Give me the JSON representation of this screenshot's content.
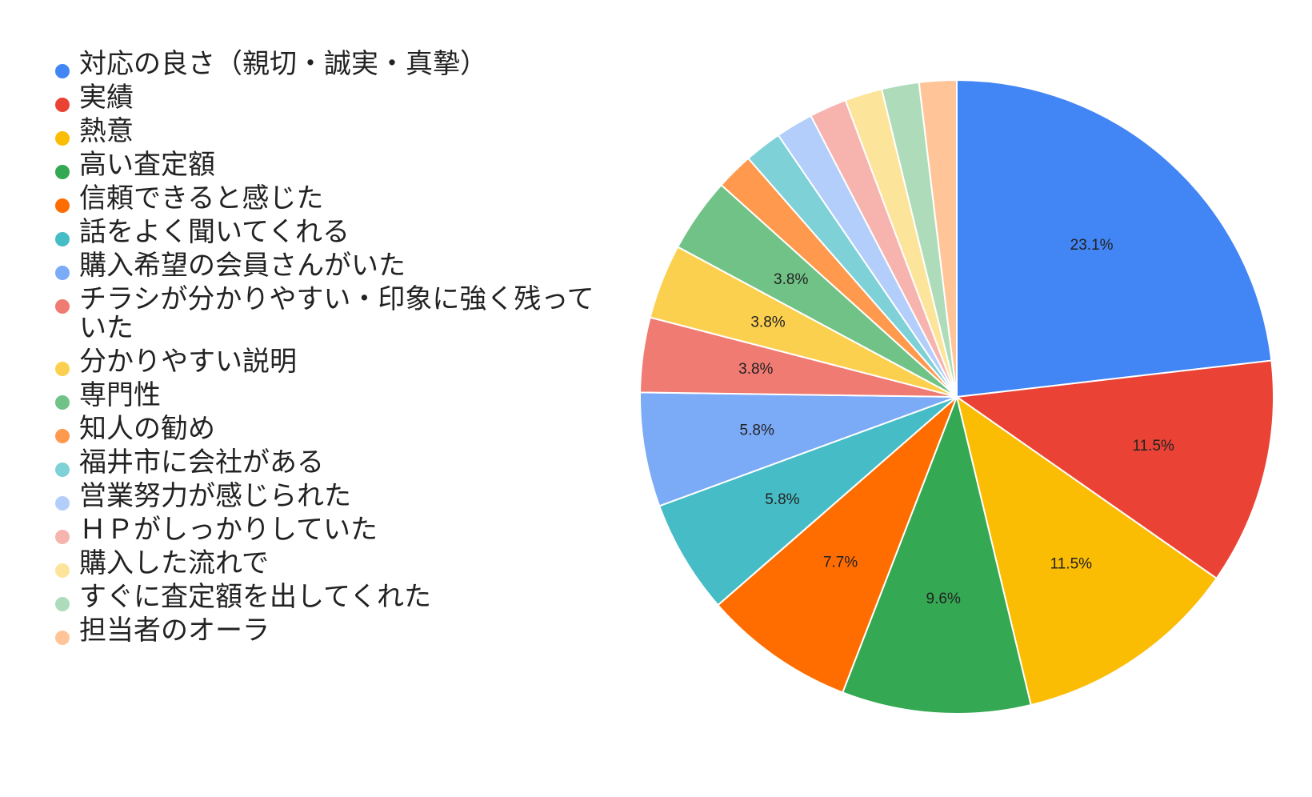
{
  "chart_data": {
    "type": "pie",
    "start_angle_deg": 0,
    "direction": "clockwise",
    "legend_position": "left",
    "slices": [
      {
        "label": "対応の良さ（親切・誠実・真摯）",
        "value": 23.1,
        "data_label": "23.1%",
        "color": "#4285f4"
      },
      {
        "label": "実績",
        "value": 11.5,
        "data_label": "11.5%",
        "color": "#ea4335"
      },
      {
        "label": "熱意",
        "value": 11.5,
        "data_label": "11.5%",
        "color": "#fbbc04"
      },
      {
        "label": "高い査定額",
        "value": 9.6,
        "data_label": "9.6%",
        "color": "#34a853"
      },
      {
        "label": "信頼できると感じた",
        "value": 7.7,
        "data_label": "7.7%",
        "color": "#ff6d01"
      },
      {
        "label": "話をよく聞いてくれる",
        "value": 5.8,
        "data_label": "5.8%",
        "color": "#46bdc6"
      },
      {
        "label": "購入希望の会員さんがいた",
        "value": 5.8,
        "data_label": "5.8%",
        "color": "#7baaf7"
      },
      {
        "label": "チラシが分かりやすい・印象に強く残っていた",
        "value": 3.8,
        "data_label": "3.8%",
        "color": "#f07b72"
      },
      {
        "label": "分かりやすい説明",
        "value": 3.8,
        "data_label": "3.8%",
        "color": "#fcd04f"
      },
      {
        "label": "専門性",
        "value": 3.8,
        "data_label": "3.8%",
        "color": "#71c287"
      },
      {
        "label": "知人の勧め",
        "value": 1.9,
        "data_label": "",
        "color": "#ff994d"
      },
      {
        "label": "福井市に会社がある",
        "value": 1.9,
        "data_label": "",
        "color": "#7ed1d7"
      },
      {
        "label": "営業努力が感じられた",
        "value": 1.9,
        "data_label": "",
        "color": "#b3cefb"
      },
      {
        "label": "ＨＰがしっかりしていた",
        "value": 1.9,
        "data_label": "",
        "color": "#f7b4ae"
      },
      {
        "label": "購入した流れで",
        "value": 1.9,
        "data_label": "",
        "color": "#fde49b"
      },
      {
        "label": "すぐに査定額を出してくれた",
        "value": 1.9,
        "data_label": "",
        "color": "#aedcba"
      },
      {
        "label": "担当者のオーラ",
        "value": 1.9,
        "data_label": "",
        "color": "#ffc599"
      }
    ]
  }
}
